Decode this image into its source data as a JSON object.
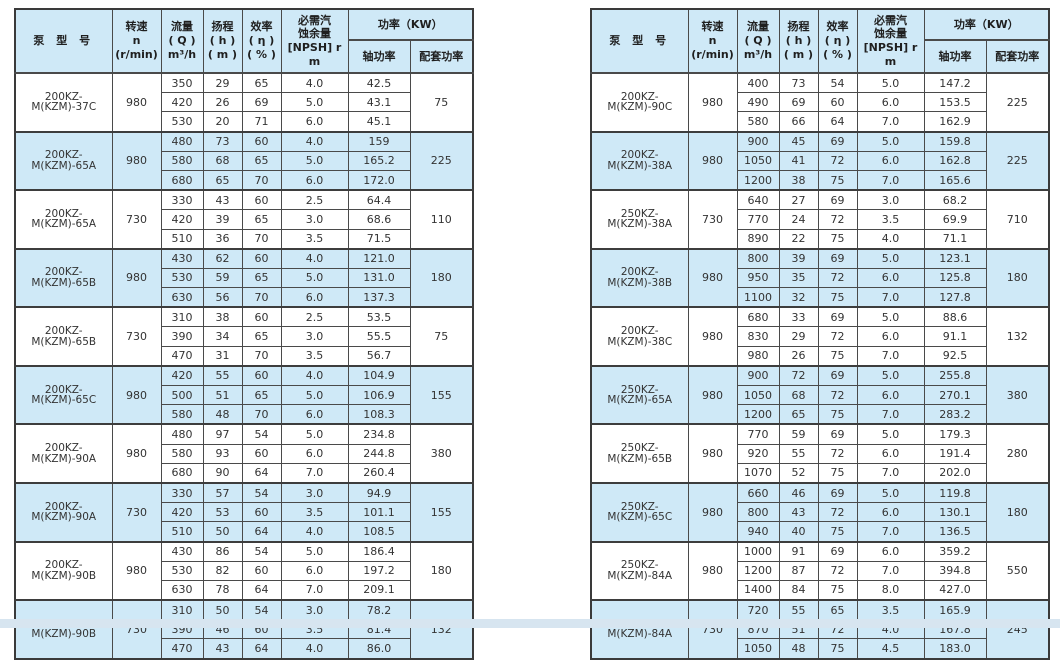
{
  "page": {
    "background": "#ffffff",
    "bottom_band_color": "#d7e5f0"
  },
  "colors": {
    "header_bg": "#cfe9f7",
    "row_group_alt_bg": "#cfe9f7",
    "row_group_bg": "#ffffff",
    "border": "#4a4a4a",
    "outer_border": "#3a3a3a",
    "text": "#333333"
  },
  "header": {
    "model": "泵 型 号",
    "speed": "转速\nn\n(r/min)",
    "flow": "流量\n( Q )\nm³/h",
    "head": "扬程\n( h )\n( m )",
    "efficiency": "效率\n( η )\n( % )",
    "npsh": "必需汽\n蚀余量\n[NPSH] r\nm",
    "power_group": "功率（KW）",
    "shaft_power": "轴功率",
    "matched_power": "配套功率"
  },
  "tables": [
    {
      "name": "left",
      "groups": [
        {
          "model": "200KZ-M(KZM)-37C",
          "speed": "980",
          "matched_power": "75",
          "rows": [
            {
              "flow": "350",
              "head": "29",
              "eff": "65",
              "npsh": "4.0",
              "shaft": "42.5"
            },
            {
              "flow": "420",
              "head": "26",
              "eff": "69",
              "npsh": "5.0",
              "shaft": "43.1"
            },
            {
              "flow": "530",
              "head": "20",
              "eff": "71",
              "npsh": "6.0",
              "shaft": "45.1"
            }
          ]
        },
        {
          "model": "200KZ-M(KZM)-65A",
          "speed": "980",
          "matched_power": "225",
          "rows": [
            {
              "flow": "480",
              "head": "73",
              "eff": "60",
              "npsh": "4.0",
              "shaft": "159"
            },
            {
              "flow": "580",
              "head": "68",
              "eff": "65",
              "npsh": "5.0",
              "shaft": "165.2"
            },
            {
              "flow": "680",
              "head": "65",
              "eff": "70",
              "npsh": "6.0",
              "shaft": "172.0"
            }
          ]
        },
        {
          "model": "200KZ-M(KZM)-65A",
          "speed": "730",
          "matched_power": "110",
          "rows": [
            {
              "flow": "330",
              "head": "43",
              "eff": "60",
              "npsh": "2.5",
              "shaft": "64.4"
            },
            {
              "flow": "420",
              "head": "39",
              "eff": "65",
              "npsh": "3.0",
              "shaft": "68.6"
            },
            {
              "flow": "510",
              "head": "36",
              "eff": "70",
              "npsh": "3.5",
              "shaft": "71.5"
            }
          ]
        },
        {
          "model": "200KZ-M(KZM)-65B",
          "speed": "980",
          "matched_power": "180",
          "rows": [
            {
              "flow": "430",
              "head": "62",
              "eff": "60",
              "npsh": "4.0",
              "shaft": "121.0"
            },
            {
              "flow": "530",
              "head": "59",
              "eff": "65",
              "npsh": "5.0",
              "shaft": "131.0"
            },
            {
              "flow": "630",
              "head": "56",
              "eff": "70",
              "npsh": "6.0",
              "shaft": "137.3"
            }
          ]
        },
        {
          "model": "200KZ-M(KZM)-65B",
          "speed": "730",
          "matched_power": "75",
          "rows": [
            {
              "flow": "310",
              "head": "38",
              "eff": "60",
              "npsh": "2.5",
              "shaft": "53.5"
            },
            {
              "flow": "390",
              "head": "34",
              "eff": "65",
              "npsh": "3.0",
              "shaft": "55.5"
            },
            {
              "flow": "470",
              "head": "31",
              "eff": "70",
              "npsh": "3.5",
              "shaft": "56.7"
            }
          ]
        },
        {
          "model": "200KZ-M(KZM)-65C",
          "speed": "980",
          "matched_power": "155",
          "rows": [
            {
              "flow": "420",
              "head": "55",
              "eff": "60",
              "npsh": "4.0",
              "shaft": "104.9"
            },
            {
              "flow": "500",
              "head": "51",
              "eff": "65",
              "npsh": "5.0",
              "shaft": "106.9"
            },
            {
              "flow": "580",
              "head": "48",
              "eff": "70",
              "npsh": "6.0",
              "shaft": "108.3"
            }
          ]
        },
        {
          "model": "200KZ-M(KZM)-90A",
          "speed": "980",
          "matched_power": "380",
          "rows": [
            {
              "flow": "480",
              "head": "97",
              "eff": "54",
              "npsh": "5.0",
              "shaft": "234.8"
            },
            {
              "flow": "580",
              "head": "93",
              "eff": "60",
              "npsh": "6.0",
              "shaft": "244.8"
            },
            {
              "flow": "680",
              "head": "90",
              "eff": "64",
              "npsh": "7.0",
              "shaft": "260.4"
            }
          ]
        },
        {
          "model": "200KZ-M(KZM)-90A",
          "speed": "730",
          "matched_power": "155",
          "rows": [
            {
              "flow": "330",
              "head": "57",
              "eff": "54",
              "npsh": "3.0",
              "shaft": "94.9"
            },
            {
              "flow": "420",
              "head": "53",
              "eff": "60",
              "npsh": "3.5",
              "shaft": "101.1"
            },
            {
              "flow": "510",
              "head": "50",
              "eff": "64",
              "npsh": "4.0",
              "shaft": "108.5"
            }
          ]
        },
        {
          "model": "200KZ-M(KZM)-90B",
          "speed": "980",
          "matched_power": "180",
          "rows": [
            {
              "flow": "430",
              "head": "86",
              "eff": "54",
              "npsh": "5.0",
              "shaft": "186.4"
            },
            {
              "flow": "530",
              "head": "82",
              "eff": "60",
              "npsh": "6.0",
              "shaft": "197.2"
            },
            {
              "flow": "630",
              "head": "78",
              "eff": "64",
              "npsh": "7.0",
              "shaft": "209.1"
            }
          ]
        },
        {
          "model": "200KZ-M(KZM)-90B",
          "speed": "730",
          "matched_power": "132",
          "rows": [
            {
              "flow": "310",
              "head": "50",
              "eff": "54",
              "npsh": "3.0",
              "shaft": "78.2"
            },
            {
              "flow": "390",
              "head": "46",
              "eff": "60",
              "npsh": "3.5",
              "shaft": "81.4"
            },
            {
              "flow": "470",
              "head": "43",
              "eff": "64",
              "npsh": "4.0",
              "shaft": "86.0"
            }
          ]
        }
      ]
    },
    {
      "name": "right",
      "groups": [
        {
          "model": "200KZ-M(KZM)-90C",
          "speed": "980",
          "matched_power": "225",
          "rows": [
            {
              "flow": "400",
              "head": "73",
              "eff": "54",
              "npsh": "5.0",
              "shaft": "147.2"
            },
            {
              "flow": "490",
              "head": "69",
              "eff": "60",
              "npsh": "6.0",
              "shaft": "153.5"
            },
            {
              "flow": "580",
              "head": "66",
              "eff": "64",
              "npsh": "7.0",
              "shaft": "162.9"
            }
          ]
        },
        {
          "model": "200KZ-M(KZM)-38A",
          "speed": "980",
          "matched_power": "225",
          "rows": [
            {
              "flow": "900",
              "head": "45",
              "eff": "69",
              "npsh": "5.0",
              "shaft": "159.8"
            },
            {
              "flow": "1050",
              "head": "41",
              "eff": "72",
              "npsh": "6.0",
              "shaft": "162.8"
            },
            {
              "flow": "1200",
              "head": "38",
              "eff": "75",
              "npsh": "7.0",
              "shaft": "165.6"
            }
          ]
        },
        {
          "model": "250KZ-M(KZM)-38A",
          "speed": "730",
          "matched_power": "710",
          "rows": [
            {
              "flow": "640",
              "head": "27",
              "eff": "69",
              "npsh": "3.0",
              "shaft": "68.2"
            },
            {
              "flow": "770",
              "head": "24",
              "eff": "72",
              "npsh": "3.5",
              "shaft": "69.9"
            },
            {
              "flow": "890",
              "head": "22",
              "eff": "75",
              "npsh": "4.0",
              "shaft": "71.1"
            }
          ]
        },
        {
          "model": "200KZ-M(KZM)-38B",
          "speed": "980",
          "matched_power": "180",
          "rows": [
            {
              "flow": "800",
              "head": "39",
              "eff": "69",
              "npsh": "5.0",
              "shaft": "123.1"
            },
            {
              "flow": "950",
              "head": "35",
              "eff": "72",
              "npsh": "6.0",
              "shaft": "125.8"
            },
            {
              "flow": "1100",
              "head": "32",
              "eff": "75",
              "npsh": "7.0",
              "shaft": "127.8"
            }
          ]
        },
        {
          "model": "200KZ-M(KZM)-38C",
          "speed": "980",
          "matched_power": "132",
          "rows": [
            {
              "flow": "680",
              "head": "33",
              "eff": "69",
              "npsh": "5.0",
              "shaft": "88.6"
            },
            {
              "flow": "830",
              "head": "29",
              "eff": "72",
              "npsh": "6.0",
              "shaft": "91.1"
            },
            {
              "flow": "980",
              "head": "26",
              "eff": "75",
              "npsh": "7.0",
              "shaft": "92.5"
            }
          ]
        },
        {
          "model": "250KZ-M(KZM)-65A",
          "speed": "980",
          "matched_power": "380",
          "rows": [
            {
              "flow": "900",
              "head": "72",
              "eff": "69",
              "npsh": "5.0",
              "shaft": "255.8"
            },
            {
              "flow": "1050",
              "head": "68",
              "eff": "72",
              "npsh": "6.0",
              "shaft": "270.1"
            },
            {
              "flow": "1200",
              "head": "65",
              "eff": "75",
              "npsh": "7.0",
              "shaft": "283.2"
            }
          ]
        },
        {
          "model": "250KZ-M(KZM)-65B",
          "speed": "980",
          "matched_power": "280",
          "rows": [
            {
              "flow": "770",
              "head": "59",
              "eff": "69",
              "npsh": "5.0",
              "shaft": "179.3"
            },
            {
              "flow": "920",
              "head": "55",
              "eff": "72",
              "npsh": "6.0",
              "shaft": "191.4"
            },
            {
              "flow": "1070",
              "head": "52",
              "eff": "75",
              "npsh": "7.0",
              "shaft": "202.0"
            }
          ]
        },
        {
          "model": "250KZ-M(KZM)-65C",
          "speed": "980",
          "matched_power": "180",
          "rows": [
            {
              "flow": "660",
              "head": "46",
              "eff": "69",
              "npsh": "5.0",
              "shaft": "119.8"
            },
            {
              "flow": "800",
              "head": "43",
              "eff": "72",
              "npsh": "6.0",
              "shaft": "130.1"
            },
            {
              "flow": "940",
              "head": "40",
              "eff": "75",
              "npsh": "7.0",
              "shaft": "136.5"
            }
          ]
        },
        {
          "model": "250KZ-M(KZM)-84A",
          "speed": "980",
          "matched_power": "550",
          "rows": [
            {
              "flow": "1000",
              "head": "91",
              "eff": "69",
              "npsh": "6.0",
              "shaft": "359.2"
            },
            {
              "flow": "1200",
              "head": "87",
              "eff": "72",
              "npsh": "7.0",
              "shaft": "394.8"
            },
            {
              "flow": "1400",
              "head": "84",
              "eff": "75",
              "npsh": "8.0",
              "shaft": "427.0"
            }
          ]
        },
        {
          "model": "250KZ-M(KZM)-84A",
          "speed": "730",
          "matched_power": "245",
          "rows": [
            {
              "flow": "720",
              "head": "55",
              "eff": "65",
              "npsh": "3.5",
              "shaft": "165.9"
            },
            {
              "flow": "870",
              "head": "51",
              "eff": "72",
              "npsh": "4.0",
              "shaft": "167.8"
            },
            {
              "flow": "1050",
              "head": "48",
              "eff": "75",
              "npsh": "4.5",
              "shaft": "183.0"
            }
          ]
        }
      ]
    }
  ]
}
